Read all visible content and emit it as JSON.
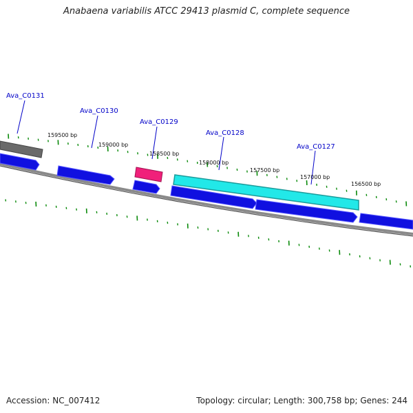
{
  "title": "Anabaena variabilis ATCC 29413 plasmid C, complete sequence",
  "footer": {
    "accession": "Accession: NC_007412",
    "topology": "Topology: circular; Length: 300,758 bp; Genes: 244"
  },
  "colors": {
    "forward_gene": "#1010e0",
    "reverse_gene": "#0a0ad8",
    "highlight_cyan": "#22e8e8",
    "highlight_magenta": "#f0207a",
    "gray_feature": "#6a6a6a",
    "backbone": "#8a8a8a",
    "tick": "#0a8a0a",
    "label": "#0000c8"
  },
  "gene_labels": [
    {
      "text": "Ava_C0131"
    },
    {
      "text": "Ava_C0130"
    },
    {
      "text": "Ava_C0129"
    },
    {
      "text": "Ava_C0128"
    },
    {
      "text": "Ava_C0127"
    }
  ],
  "bp_labels": [
    {
      "text": "159500 bp"
    },
    {
      "text": "159000 bp"
    },
    {
      "text": "158500 bp"
    },
    {
      "text": "158000 bp"
    },
    {
      "text": "157500 bp"
    },
    {
      "text": "157000 bp"
    },
    {
      "text": "156500 bp"
    }
  ]
}
